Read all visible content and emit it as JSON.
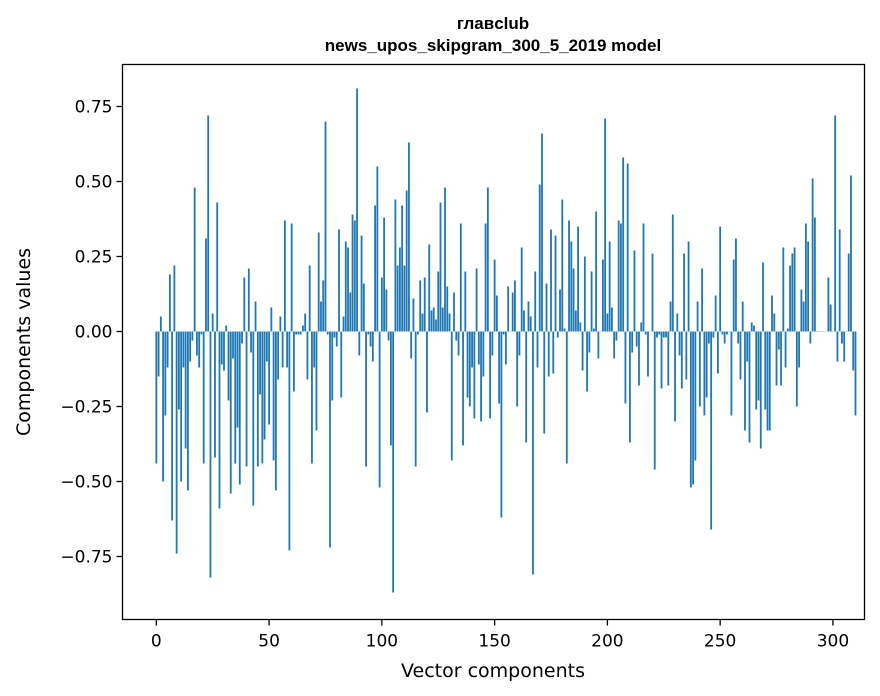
{
  "chart_data": {
    "type": "bar",
    "title_line1": "главclub",
    "title_line2": "news_upos_skipgram_300_5_2019 model",
    "xlabel": "Vector components",
    "ylabel": "Components values",
    "xlim": [
      -15,
      314
    ],
    "ylim": [
      -0.96,
      0.89
    ],
    "xticks": [
      0,
      50,
      100,
      150,
      200,
      250,
      300
    ],
    "xtick_labels": [
      "0",
      "50",
      "100",
      "150",
      "200",
      "250",
      "300"
    ],
    "yticks": [
      0.75,
      0.5,
      0.25,
      0.0,
      -0.25,
      -0.5,
      -0.75
    ],
    "ytick_labels": [
      "0.75",
      "0.50",
      "0.25",
      "0.00",
      "−0.25",
      "−0.50",
      "−0.75"
    ],
    "bar_color": "#1f77b4",
    "grid": false,
    "values": [
      -0.44,
      -0.15,
      0.05,
      -0.5,
      -0.28,
      -0.12,
      0.19,
      -0.63,
      0.22,
      -0.74,
      -0.26,
      -0.5,
      -0.12,
      -0.39,
      -0.53,
      -0.1,
      -0.03,
      0.48,
      -0.08,
      -0.12,
      -0.01,
      -0.44,
      0.31,
      0.72,
      -0.82,
      0.06,
      -0.42,
      0.43,
      -0.59,
      -0.11,
      -0.13,
      0.02,
      -0.23,
      -0.54,
      -0.09,
      -0.44,
      -0.32,
      -0.51,
      -0.04,
      0.18,
      -0.45,
      0.21,
      -0.07,
      -0.58,
      0.1,
      -0.45,
      -0.21,
      -0.44,
      -0.36,
      -0.1,
      -0.31,
      0.08,
      -0.43,
      -0.53,
      -0.16,
      0.05,
      -0.12,
      0.37,
      -0.12,
      -0.73,
      0.36,
      -0.2,
      -0.01,
      -0.01,
      -0.01,
      0.02,
      0.06,
      -0.16,
      0.22,
      -0.44,
      -0.12,
      -0.33,
      0.33,
      0.1,
      0.17,
      0.7,
      -0.01,
      -0.72,
      -0.23,
      -0.02,
      -0.05,
      0.34,
      -0.22,
      0.05,
      0.3,
      0.28,
      0.13,
      0.39,
      0.37,
      0.81,
      -0.08,
      0.32,
      0.16,
      -0.45,
      -0.01,
      -0.05,
      -0.1,
      0.42,
      0.55,
      -0.52,
      0.18,
      0.38,
      0.14,
      -0.03,
      -0.38,
      -0.87,
      0.44,
      0.22,
      0.28,
      0.42,
      0.22,
      0.47,
      0.63,
      -0.09,
      0.11,
      -0.45,
      -0.01,
      0.17,
      0.06,
      0.18,
      -0.27,
      0.29,
      0.07,
      0.08,
      0.04,
      0.2,
      0.43,
      0.08,
      0.48,
      0.15,
      0.06,
      -0.43,
      0.13,
      -0.03,
      -0.08,
      0.36,
      -0.38,
      0.2,
      -0.22,
      -0.25,
      -0.12,
      -0.29,
      0.21,
      -0.11,
      -0.3,
      -0.15,
      0.36,
      0.48,
      -0.29,
      -0.08,
      0.24,
      0.12,
      -0.24,
      -0.62,
      -0.01,
      -0.11,
      0.15,
      0.0,
      0.13,
      0.17,
      -0.25,
      -0.08,
      0.28,
      0.07,
      -0.37,
      0.1,
      0.05,
      -0.81,
      0.2,
      -0.12,
      0.49,
      0.66,
      -0.34,
      0.16,
      -0.15,
      0.34,
      -0.14,
      0.32,
      -0.02,
      0.14,
      0.44,
      0.01,
      -0.44,
      0.37,
      0.3,
      0.21,
      0.07,
      0.35,
      0.03,
      -0.13,
      0.25,
      -0.2,
      -0.07,
      0.2,
      0.01,
      0.4,
      -0.09,
      0.0,
      0.24,
      0.71,
      0.06,
      0.3,
      0.08,
      -0.09,
      -0.03,
      0.37,
      0.36,
      0.58,
      -0.24,
      0.56,
      -0.37,
      -0.07,
      0.27,
      -0.05,
      -0.18,
      0.03,
      0.36,
      -0.01,
      -0.15,
      0.0,
      0.26,
      -0.46,
      -0.02,
      -0.01,
      -0.19,
      -0.02,
      -0.02,
      -0.18,
      0.1,
      0.39,
      -0.3,
      0.06,
      -0.08,
      -0.19,
      0.26,
      -0.16,
      0.3,
      -0.52,
      -0.51,
      -0.43,
      0.1,
      -0.25,
      0.21,
      -0.28,
      -0.22,
      -0.04,
      -0.66,
      -0.02,
      0.12,
      -0.14,
      0.35,
      -0.01,
      -0.04,
      -0.01,
      0.0,
      -0.28,
      0.24,
      0.31,
      -0.04,
      -0.16,
      0.1,
      -0.33,
      -0.1,
      -0.37,
      0.03,
      0.02,
      -0.26,
      -0.23,
      -0.39,
      0.23,
      -0.26,
      -0.33,
      -0.33,
      0.12,
      0.06,
      -0.18,
      -0.06,
      -0.18,
      0.28,
      -0.12,
      0.01,
      0.22,
      0.26,
      0.28,
      -0.25,
      -0.12,
      0.14,
      0.1,
      0.36,
      0.3,
      -0.04,
      0.51,
      0.38,
      0.0,
      0.0,
      0.0,
      0.0,
      0.0,
      0.18,
      0.09,
      0.0,
      0.72,
      -0.1,
      0.34,
      -0.04,
      -0.1,
      0.0,
      0.26,
      0.52,
      -0.13,
      -0.28
    ]
  }
}
